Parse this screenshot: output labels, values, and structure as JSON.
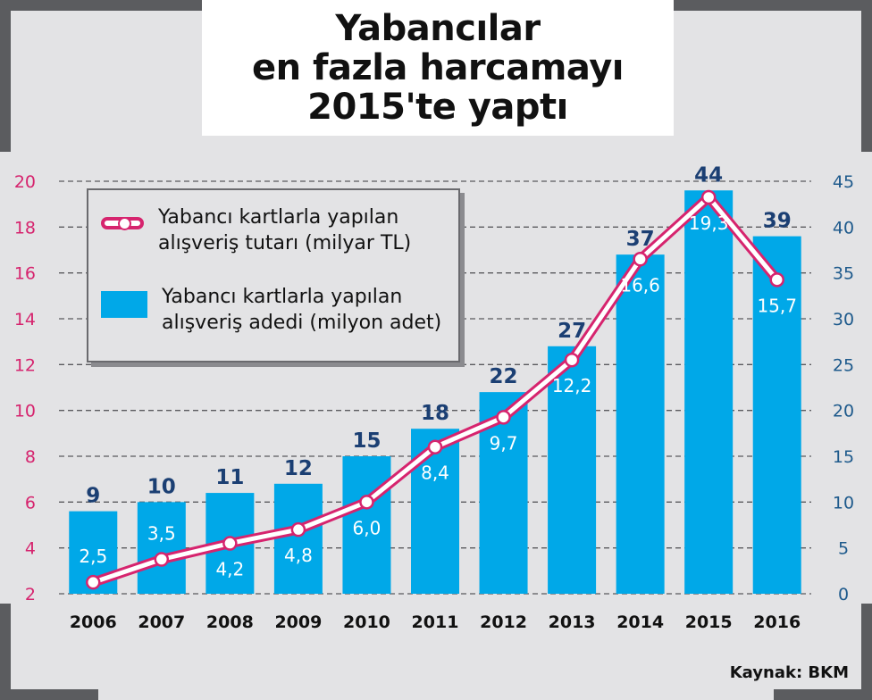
{
  "title_lines": [
    "Yabancılar",
    "en fazla harcamayı",
    "2015'te yaptı"
  ],
  "source": "Kaynak: BKM",
  "colors": {
    "background": "#e3e3e5",
    "bars": "#00a8e8",
    "line": "#d6246e",
    "left_axis": "#d6246e",
    "right_axis": "#1e5a8c",
    "bar_labels": "#1b3f73",
    "frame_corners": "#5b5c5f"
  },
  "legend": {
    "line_label": "Yabancı kartlarla yapılan alışveriş tutarı (milyar TL)",
    "bar_label": "Yabancı kartlarla yapılan alışveriş adedi (milyon adet)"
  },
  "chart_data": {
    "type": "bar",
    "categories": [
      "2006",
      "2007",
      "2008",
      "2009",
      "2010",
      "2011",
      "2012",
      "2013",
      "2014",
      "2015",
      "2016"
    ],
    "series": [
      {
        "name": "Yabancı kartlarla yapılan alışveriş adedi (milyon adet)",
        "type": "bar",
        "axis": "right",
        "values": [
          9,
          10,
          11,
          12,
          15,
          18,
          22,
          27,
          37,
          44,
          39
        ],
        "labels": [
          "9",
          "10",
          "11",
          "12",
          "15",
          "18",
          "22",
          "27",
          "37",
          "44",
          "39"
        ]
      },
      {
        "name": "Yabancı kartlarla yapılan alışveriş tutarı (milyar TL)",
        "type": "line",
        "axis": "left",
        "values": [
          2.5,
          3.5,
          4.2,
          4.8,
          6.0,
          8.4,
          9.7,
          12.2,
          16.6,
          19.3,
          15.7
        ],
        "labels": [
          "2,5",
          "3,5",
          "4,2",
          "4,8",
          "6,0",
          "8,4",
          "9,7",
          "12,2",
          "16,6",
          "19,3",
          "15,7"
        ]
      }
    ],
    "y_left": {
      "min": 2,
      "max": 20,
      "ticks": [
        "2",
        "4",
        "6",
        "8",
        "10",
        "12",
        "14",
        "16",
        "18",
        "20"
      ]
    },
    "y_right": {
      "min": 0,
      "max": 45,
      "ticks": [
        "0",
        "5",
        "10",
        "15",
        "20",
        "25",
        "30",
        "35",
        "40",
        "45"
      ]
    },
    "grid": "horizontal dashed",
    "legend_position": "top-left"
  }
}
